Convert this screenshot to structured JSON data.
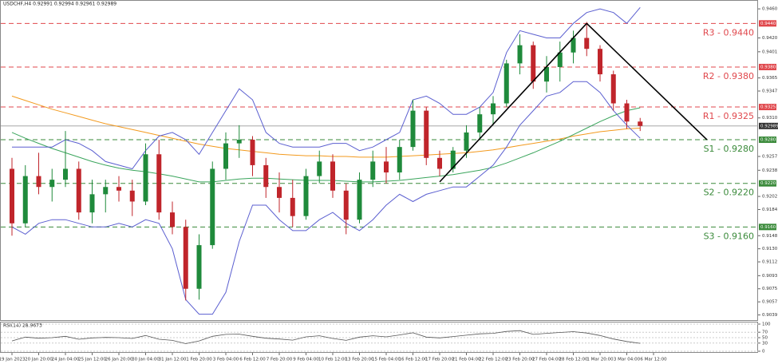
{
  "chart_data": {
    "type": "candlestick",
    "title": "USDCHF,H4 0.92991 0.92994 0.92961 0.92989",
    "categories": [
      "19 Jan 2023",
      null,
      "20 Jan 20:00",
      null,
      "24 Jan 04:00",
      null,
      "25 Jan 12:00",
      null,
      "26 Jan 20:00",
      null,
      "30 Jan 04:00",
      null,
      "31 Jan 12:00",
      null,
      "1 Feb 20:00",
      null,
      "3 Feb 04:00",
      null,
      "6 Feb 12:00",
      null,
      "7 Feb 20:00",
      null,
      "9 Feb 04:00",
      null,
      "10 Feb 12:00",
      null,
      "13 Feb 20:00",
      null,
      "15 Feb 04:00",
      null,
      "16 Feb 12:00",
      null,
      "17 Feb 20:00",
      null,
      "21 Feb 04:00",
      null,
      "22 Feb 12:00",
      null,
      "23 Feb 20:00",
      null,
      "27 Feb 04:00",
      null,
      "28 Feb 12:00",
      null,
      "1 Mar 20:00",
      null,
      "3 Mar 04:00",
      null,
      "6 Mar 12:00",
      null
    ],
    "open": [
      0.924,
      0.9165,
      0.923,
      0.9215,
      0.9225,
      0.924,
      0.918,
      0.9205,
      0.9215,
      0.921,
      0.9195,
      0.926,
      0.918,
      0.916,
      0.9075,
      0.9135,
      0.924,
      0.9275,
      0.928,
      0.9245,
      0.9215,
      0.92,
      0.9175,
      0.923,
      0.925,
      0.921,
      0.917,
      0.9225,
      0.925,
      0.9235,
      0.927,
      0.932,
      0.9255,
      0.924,
      0.9265,
      0.929,
      0.9315,
      0.933,
      0.9385,
      0.941,
      0.936,
      0.938,
      0.94,
      0.942,
      0.9405,
      0.937,
      0.933,
      0.9305,
      null,
      null
    ],
    "high": [
      0.9255,
      0.9245,
      0.9262,
      0.924,
      0.9292,
      0.925,
      0.9225,
      0.9225,
      0.923,
      0.9225,
      0.9275,
      0.928,
      0.9195,
      0.917,
      0.915,
      0.925,
      0.929,
      0.93,
      0.9285,
      0.9255,
      0.9235,
      0.9225,
      0.924,
      0.9265,
      0.926,
      0.922,
      0.9235,
      0.9265,
      0.927,
      0.928,
      0.9335,
      0.9325,
      0.9265,
      0.927,
      0.93,
      0.9325,
      0.934,
      0.939,
      0.9425,
      0.9415,
      0.9395,
      0.9415,
      0.943,
      0.9442,
      0.941,
      0.9375,
      0.9335,
      0.931,
      null,
      null
    ],
    "low": [
      0.9148,
      0.916,
      0.9205,
      0.9195,
      0.9215,
      0.917,
      0.9165,
      0.918,
      0.9195,
      0.9175,
      0.919,
      0.917,
      0.915,
      0.9059,
      0.906,
      0.913,
      0.9225,
      0.9255,
      0.923,
      0.92,
      0.918,
      0.916,
      0.917,
      0.922,
      0.92,
      0.915,
      0.9165,
      0.9215,
      0.922,
      0.9225,
      0.9265,
      0.9245,
      0.923,
      0.9235,
      0.9255,
      0.928,
      0.93,
      0.9325,
      0.937,
      0.935,
      0.9345,
      0.936,
      0.9385,
      0.9395,
      0.936,
      0.932,
      0.9295,
      0.9292,
      null,
      null
    ],
    "close": [
      0.9165,
      0.923,
      0.9215,
      0.9225,
      0.924,
      0.918,
      0.9205,
      0.9215,
      0.921,
      0.9195,
      0.926,
      0.918,
      0.916,
      0.9075,
      0.9135,
      0.924,
      0.9275,
      0.928,
      0.9245,
      0.9215,
      0.92,
      0.9175,
      0.923,
      0.925,
      0.921,
      0.917,
      0.9225,
      0.925,
      0.9235,
      0.927,
      0.932,
      0.9255,
      0.924,
      0.9265,
      0.929,
      0.9315,
      0.933,
      0.9385,
      0.941,
      0.936,
      0.938,
      0.94,
      0.942,
      0.9405,
      0.937,
      0.933,
      0.9305,
      0.9299,
      null,
      null
    ],
    "up_color": "#1f8a3b",
    "down_color": "#c0252b",
    "lines": [
      {
        "color": "#f39a1e",
        "values": [
          0.934,
          0.9334,
          0.9328,
          0.9322,
          0.9317,
          0.9312,
          0.9307,
          0.9302,
          0.9298,
          0.9294,
          0.929,
          0.9286,
          0.9282,
          0.9278,
          0.9274,
          0.9271,
          0.9268,
          0.9266,
          0.9264,
          0.9262,
          0.926,
          0.9259,
          0.9258,
          0.9258,
          0.9257,
          0.9257,
          0.9256,
          0.9256,
          0.9256,
          0.9257,
          0.9258,
          0.9259,
          0.926,
          0.9261,
          0.9262,
          0.9264,
          0.9266,
          0.9269,
          0.9272,
          0.9275,
          0.9278,
          0.9281,
          0.9285,
          0.9288,
          0.9291,
          0.9293,
          0.9295,
          0.9296,
          null,
          null
        ]
      },
      {
        "color": "#3aa55c",
        "values": [
          0.929,
          0.9282,
          0.9275,
          0.9268,
          0.9262,
          0.9256,
          0.925,
          0.9245,
          0.9241,
          0.9238,
          0.9236,
          0.9233,
          0.923,
          0.9226,
          0.9222,
          0.9222,
          0.9224,
          0.9226,
          0.9227,
          0.9227,
          0.9226,
          0.9225,
          0.9224,
          0.9224,
          0.9224,
          0.9223,
          0.9222,
          0.9222,
          0.9223,
          0.9224,
          0.9226,
          0.9228,
          0.923,
          0.9232,
          0.9235,
          0.9238,
          0.9242,
          0.9248,
          0.9255,
          0.9262,
          0.927,
          0.9278,
          0.9287,
          0.9296,
          0.9305,
          0.9313,
          0.932,
          0.9324,
          null,
          null
        ]
      },
      {
        "color": "#5b5fd0",
        "values": [
          0.927,
          0.927,
          0.927,
          0.927,
          0.928,
          0.9275,
          0.9265,
          0.925,
          0.9245,
          0.924,
          0.9265,
          0.9285,
          0.929,
          0.928,
          0.926,
          0.929,
          0.932,
          0.935,
          0.9335,
          0.929,
          0.9275,
          0.927,
          0.927,
          0.927,
          0.9275,
          0.9275,
          0.9265,
          0.927,
          0.928,
          0.929,
          0.9335,
          0.934,
          0.933,
          0.9315,
          0.9315,
          0.9325,
          0.9345,
          0.94,
          0.943,
          0.9425,
          0.942,
          0.942,
          0.944,
          0.9455,
          0.946,
          0.9455,
          0.944,
          0.9462,
          null,
          null
        ]
      },
      {
        "color": "#5b5fd0",
        "values": [
          0.916,
          0.915,
          0.9165,
          0.917,
          0.917,
          0.9165,
          0.916,
          0.916,
          0.9165,
          0.916,
          0.917,
          0.9165,
          0.913,
          0.906,
          0.904,
          0.904,
          0.907,
          0.914,
          0.919,
          0.919,
          0.917,
          0.9155,
          0.9155,
          0.917,
          0.918,
          0.9165,
          0.9155,
          0.917,
          0.919,
          0.9205,
          0.9195,
          0.9205,
          0.921,
          0.9215,
          0.9215,
          0.923,
          0.9245,
          0.927,
          0.93,
          0.932,
          0.934,
          0.9345,
          0.936,
          0.936,
          0.9345,
          0.932,
          0.93,
          0.9282,
          null,
          null
        ]
      }
    ],
    "levels": [
      {
        "name": "R3 - 0.9440",
        "value": 0.944,
        "axis_label": "0.9440",
        "color": "#e0474c"
      },
      {
        "name": "R2 - 0.9380",
        "value": 0.938,
        "axis_label": "0.9380",
        "color": "#e0474c"
      },
      {
        "name": "R1 - 0.9325",
        "value": 0.9325,
        "axis_label": "0.9325",
        "color": "#e0474c"
      },
      {
        "name": "S1 - 0.9280",
        "value": 0.928,
        "axis_label": "0.9280",
        "color": "#3a8a3a"
      },
      {
        "name": "S2 - 0.9220",
        "value": 0.922,
        "axis_label": "0.9220",
        "color": "#3a8a3a"
      },
      {
        "name": "S3 - 0.9160",
        "value": 0.916,
        "axis_label": "0.9160",
        "color": "#3a8a3a"
      }
    ],
    "last_price": {
      "value": 0.92989,
      "label": "0.92989"
    },
    "trendlines": [
      {
        "x": [
          32,
          43
        ],
        "y": [
          0.9222,
          0.944
        ]
      },
      {
        "x": [
          43,
          52
        ],
        "y": [
          0.944,
          0.928
        ]
      }
    ],
    "ylim": [
      0.9033,
      0.947
    ],
    "yticks": [
      {
        "value": 0.946,
        "label": "0.9460"
      },
      {
        "value": 0.942,
        "label": "0.9420"
      },
      {
        "value": 0.9401,
        "label": "0.9401"
      },
      {
        "value": 0.9365,
        "label": "0.9365"
      },
      {
        "value": 0.9347,
        "label": "0.9347"
      },
      {
        "value": 0.931,
        "label": "0.9310"
      },
      {
        "value": 0.9257,
        "label": "0.9257"
      },
      {
        "value": 0.9238,
        "label": "0.9238"
      },
      {
        "value": 0.9202,
        "label": "0.9202"
      },
      {
        "value": 0.9184,
        "label": "0.9184"
      },
      {
        "value": 0.9148,
        "label": "0.9148"
      },
      {
        "value": 0.913,
        "label": "0.9130"
      },
      {
        "value": 0.9112,
        "label": "0.9112"
      },
      {
        "value": 0.9093,
        "label": "0.9093"
      },
      {
        "value": 0.9075,
        "label": "0.9075"
      },
      {
        "value": 0.9057,
        "label": "0.9057"
      },
      {
        "value": 0.9039,
        "label": "0.9039"
      }
    ],
    "rsi": {
      "title": "RSI(14) 28.9673",
      "color": "#555555",
      "values": [
        38,
        52,
        48,
        50,
        55,
        44,
        49,
        51,
        50,
        47,
        58,
        44,
        40,
        28,
        38,
        55,
        62,
        63,
        55,
        48,
        45,
        41,
        53,
        57,
        47,
        40,
        52,
        57,
        53,
        60,
        68,
        52,
        49,
        54,
        59,
        64,
        66,
        73,
        76,
        62,
        66,
        69,
        72,
        67,
        58,
        45,
        36,
        29,
        null,
        null
      ],
      "ylim": [
        0,
        100
      ],
      "yticks": [
        0,
        30,
        50,
        70,
        100
      ]
    }
  }
}
